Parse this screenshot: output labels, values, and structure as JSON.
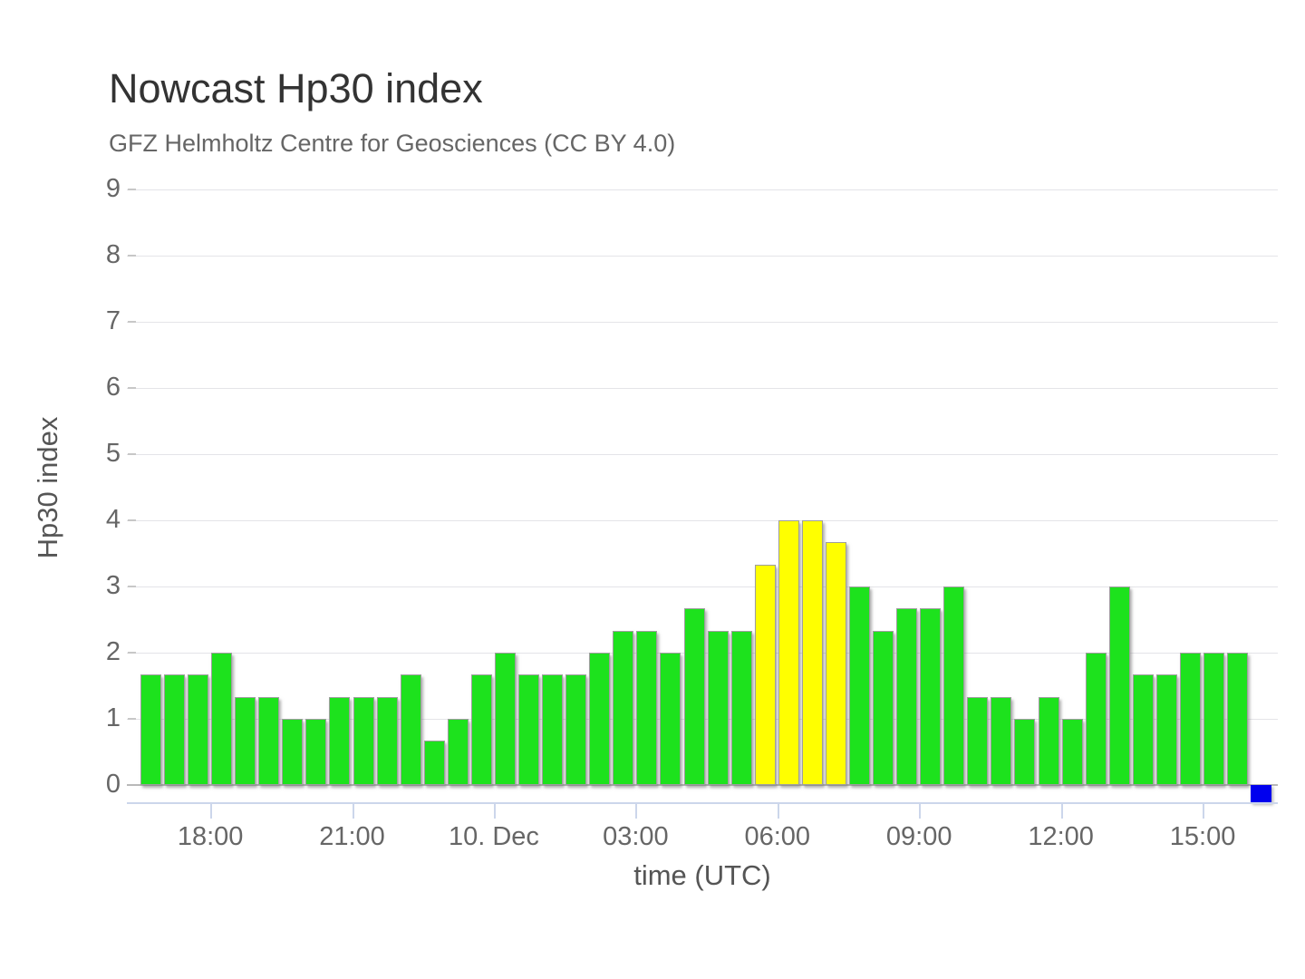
{
  "header": {
    "title": "Nowcast Hp30 index",
    "subtitle": "GFZ Helmholtz Centre for Geosciences (CC BY 4.0)"
  },
  "chart_data": {
    "type": "bar",
    "title": "Nowcast Hp30 index",
    "subtitle": "GFZ Helmholtz Centre for Geosciences (CC BY 4.0)",
    "xlabel": "time (UTC)",
    "ylabel": "Hp30 index",
    "ylim": [
      0,
      9
    ],
    "yticks": [
      0,
      1,
      2,
      3,
      4,
      5,
      6,
      7,
      8,
      9
    ],
    "grid": true,
    "legend": false,
    "bar_interval_minutes": 30,
    "xticks": [
      {
        "label": "18:00",
        "slot": 3
      },
      {
        "label": "21:00",
        "slot": 9
      },
      {
        "label": "10. Dec",
        "slot": 15
      },
      {
        "label": "03:00",
        "slot": 21
      },
      {
        "label": "06:00",
        "slot": 27
      },
      {
        "label": "09:00",
        "slot": 33
      },
      {
        "label": "12:00",
        "slot": 39
      },
      {
        "label": "15:00",
        "slot": 45
      }
    ],
    "series": [
      {
        "name": "Hp30",
        "points": [
          {
            "t": "16:30",
            "v": 1.67,
            "c": "green"
          },
          {
            "t": "17:00",
            "v": 1.67,
            "c": "green"
          },
          {
            "t": "17:30",
            "v": 1.67,
            "c": "green"
          },
          {
            "t": "18:00",
            "v": 2.0,
            "c": "green"
          },
          {
            "t": "18:30",
            "v": 1.33,
            "c": "green"
          },
          {
            "t": "19:00",
            "v": 1.33,
            "c": "green"
          },
          {
            "t": "19:30",
            "v": 1.0,
            "c": "green"
          },
          {
            "t": "20:00",
            "v": 1.0,
            "c": "green"
          },
          {
            "t": "20:30",
            "v": 1.33,
            "c": "green"
          },
          {
            "t": "21:00",
            "v": 1.33,
            "c": "green"
          },
          {
            "t": "21:30",
            "v": 1.33,
            "c": "green"
          },
          {
            "t": "22:00",
            "v": 1.67,
            "c": "green"
          },
          {
            "t": "22:30",
            "v": 0.67,
            "c": "green"
          },
          {
            "t": "23:00",
            "v": 1.0,
            "c": "green"
          },
          {
            "t": "23:30",
            "v": 1.67,
            "c": "green"
          },
          {
            "t": "00:00",
            "v": 2.0,
            "c": "green"
          },
          {
            "t": "00:30",
            "v": 1.67,
            "c": "green"
          },
          {
            "t": "01:00",
            "v": 1.67,
            "c": "green"
          },
          {
            "t": "01:30",
            "v": 1.67,
            "c": "green"
          },
          {
            "t": "02:00",
            "v": 2.0,
            "c": "green"
          },
          {
            "t": "02:30",
            "v": 2.33,
            "c": "green"
          },
          {
            "t": "03:00",
            "v": 2.33,
            "c": "green"
          },
          {
            "t": "03:30",
            "v": 2.0,
            "c": "green"
          },
          {
            "t": "04:00",
            "v": 2.67,
            "c": "green"
          },
          {
            "t": "04:30",
            "v": 2.33,
            "c": "green"
          },
          {
            "t": "05:00",
            "v": 2.33,
            "c": "green"
          },
          {
            "t": "05:30",
            "v": 3.33,
            "c": "yellow"
          },
          {
            "t": "06:00",
            "v": 4.0,
            "c": "yellow"
          },
          {
            "t": "06:30",
            "v": 4.0,
            "c": "yellow"
          },
          {
            "t": "07:00",
            "v": 3.67,
            "c": "yellow"
          },
          {
            "t": "07:30",
            "v": 3.0,
            "c": "green"
          },
          {
            "t": "08:00",
            "v": 2.33,
            "c": "green"
          },
          {
            "t": "08:30",
            "v": 2.67,
            "c": "green"
          },
          {
            "t": "09:00",
            "v": 2.67,
            "c": "green"
          },
          {
            "t": "09:30",
            "v": 3.0,
            "c": "green"
          },
          {
            "t": "10:00",
            "v": 1.33,
            "c": "green"
          },
          {
            "t": "10:30",
            "v": 1.33,
            "c": "green"
          },
          {
            "t": "11:00",
            "v": 1.0,
            "c": "green"
          },
          {
            "t": "11:30",
            "v": 1.33,
            "c": "green"
          },
          {
            "t": "12:00",
            "v": 1.0,
            "c": "green"
          },
          {
            "t": "12:30",
            "v": 2.0,
            "c": "green"
          },
          {
            "t": "13:00",
            "v": 3.0,
            "c": "green"
          },
          {
            "t": "13:30",
            "v": 1.67,
            "c": "green"
          },
          {
            "t": "14:00",
            "v": 1.67,
            "c": "green"
          },
          {
            "t": "14:30",
            "v": 2.0,
            "c": "green"
          },
          {
            "t": "15:00",
            "v": 2.0,
            "c": "green"
          },
          {
            "t": "15:30",
            "v": 2.0,
            "c": "green"
          }
        ]
      }
    ],
    "latest_marker": {
      "slot": 47,
      "color": "blue"
    },
    "colors": {
      "green": "#1de21d",
      "yellow": "#ffff00",
      "blue": "#0000ee",
      "gridline": "#e4e4e8",
      "axis_line": "#ccd6eb",
      "label_text": "#666666"
    }
  }
}
